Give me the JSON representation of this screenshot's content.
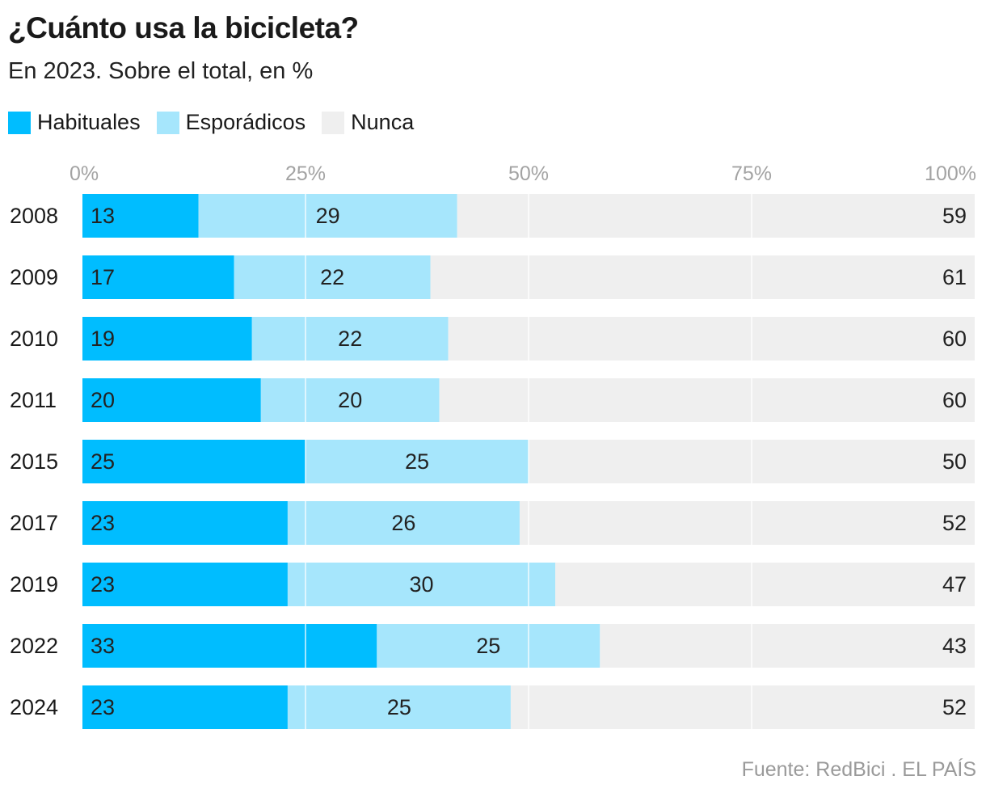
{
  "chart_data": {
    "type": "bar",
    "orientation": "horizontal",
    "stacked": true,
    "title": "¿Cuánto usa la bicicleta?",
    "subtitle": "En 2023. Sobre el total, en %",
    "categories": [
      "2008",
      "2009",
      "2010",
      "2011",
      "2015",
      "2017",
      "2019",
      "2022",
      "2024"
    ],
    "series": [
      {
        "name": "Habituales",
        "color": "#00bdff",
        "values": [
          13,
          17,
          19,
          20,
          25,
          23,
          23,
          33,
          23
        ]
      },
      {
        "name": "Esporádicos",
        "color": "#a6e6fc",
        "values": [
          29,
          22,
          22,
          20,
          25,
          26,
          30,
          25,
          25
        ]
      },
      {
        "name": "Nunca",
        "color": "#efefef",
        "values": [
          59,
          61,
          60,
          60,
          50,
          52,
          47,
          43,
          52
        ]
      }
    ],
    "xlim": [
      0,
      100
    ],
    "xticks": [
      0,
      25,
      50,
      75,
      100
    ],
    "xtick_labels": [
      "0%",
      "25%",
      "50%",
      "75%",
      "100%"
    ],
    "grid": true,
    "legend_position": "top-left"
  },
  "source": "Fuente: RedBici . EL PAÍS"
}
